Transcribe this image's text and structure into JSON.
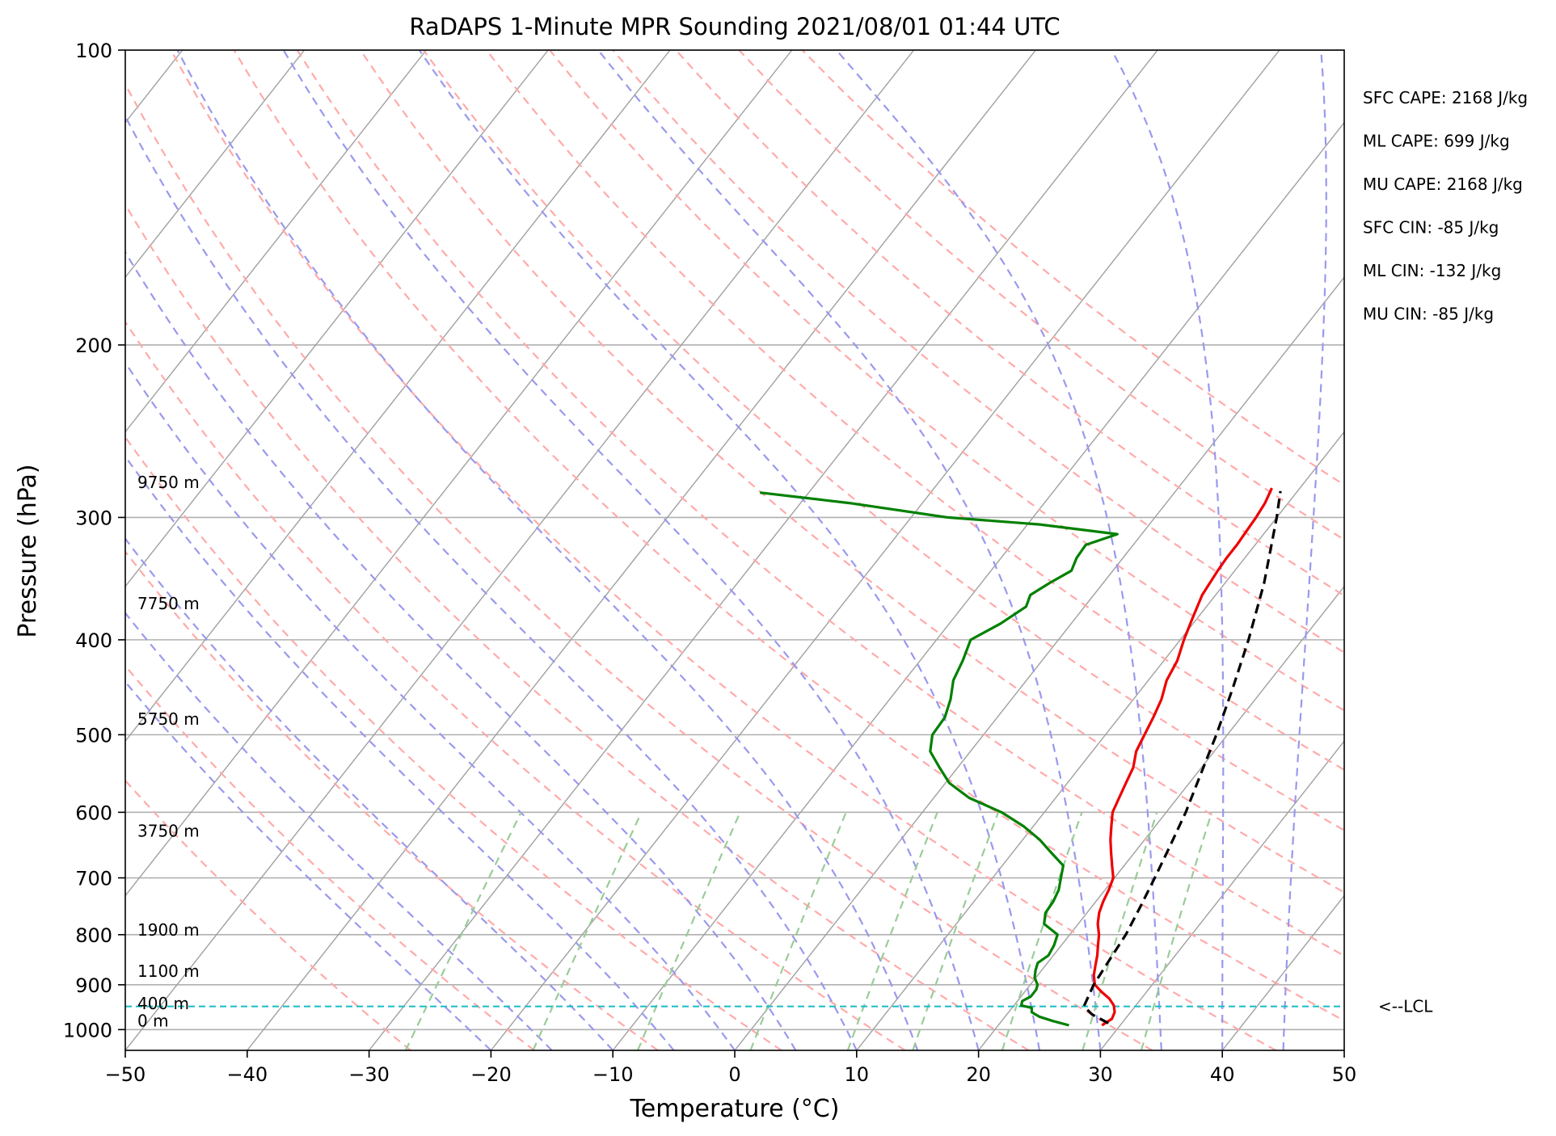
{
  "chart_data": {
    "type": "line",
    "title": "RaDAPS 1-Minute MPR Sounding 2021/08/01 01:44 UTC",
    "xlabel": "Temperature (°C)",
    "ylabel": "Pressure (hPa)",
    "xlim": [
      -50,
      50
    ],
    "ylim": [
      1050,
      100
    ],
    "y_scale": "log",
    "skew": "skew-T log-P",
    "grid": true,
    "x_ticks": [
      "−50",
      "−40",
      "−30",
      "−20",
      "−10",
      "0",
      "10",
      "20",
      "30",
      "40",
      "50"
    ],
    "y_ticks": [
      "100",
      "200",
      "300",
      "400",
      "500",
      "600",
      "700",
      "800",
      "900",
      "1000"
    ],
    "series": [
      {
        "role": "temperature",
        "color": "#ee0000",
        "points": [
          [
            990,
            28.5
          ],
          [
            975,
            28.9
          ],
          [
            960,
            28.7
          ],
          [
            945,
            28.2
          ],
          [
            930,
            27.4
          ],
          [
            915,
            26.3
          ],
          [
            900,
            25.3
          ],
          [
            880,
            24.6
          ],
          [
            860,
            24.1
          ],
          [
            840,
            23.6
          ],
          [
            820,
            23.0
          ],
          [
            800,
            22.4
          ],
          [
            780,
            21.6
          ],
          [
            760,
            21.0
          ],
          [
            740,
            20.6
          ],
          [
            720,
            20.3
          ],
          [
            700,
            19.9
          ],
          [
            680,
            19.0
          ],
          [
            660,
            18.1
          ],
          [
            640,
            17.2
          ],
          [
            620,
            16.4
          ],
          [
            600,
            15.6
          ],
          [
            580,
            15.2
          ],
          [
            560,
            14.8
          ],
          [
            540,
            14.4
          ],
          [
            520,
            13.6
          ],
          [
            500,
            13.2
          ],
          [
            480,
            12.8
          ],
          [
            460,
            12.3
          ],
          [
            440,
            11.5
          ],
          [
            420,
            11.1
          ],
          [
            400,
            10.3
          ],
          [
            380,
            9.6
          ],
          [
            360,
            8.9
          ],
          [
            340,
            8.6
          ],
          [
            330,
            8.5
          ],
          [
            320,
            8.5
          ],
          [
            310,
            8.4
          ],
          [
            300,
            8.3
          ],
          [
            290,
            8.1
          ],
          [
            280,
            7.7
          ]
        ]
      },
      {
        "role": "dewpoint",
        "color": "#008000",
        "points": [
          [
            990,
            25.8
          ],
          [
            980,
            24.2
          ],
          [
            970,
            22.8
          ],
          [
            960,
            21.9
          ],
          [
            950,
            21.6
          ],
          [
            945,
            20.6
          ],
          [
            935,
            20.4
          ],
          [
            925,
            20.8
          ],
          [
            910,
            20.8
          ],
          [
            900,
            20.6
          ],
          [
            885,
            19.9
          ],
          [
            870,
            19.5
          ],
          [
            855,
            19.2
          ],
          [
            840,
            19.6
          ],
          [
            820,
            19.4
          ],
          [
            800,
            19.0
          ],
          [
            780,
            17.2
          ],
          [
            760,
            16.6
          ],
          [
            740,
            16.5
          ],
          [
            720,
            16.2
          ],
          [
            700,
            15.6
          ],
          [
            680,
            15.0
          ],
          [
            660,
            13.2
          ],
          [
            640,
            11.4
          ],
          [
            620,
            9.2
          ],
          [
            600,
            6.5
          ],
          [
            580,
            2.9
          ],
          [
            560,
            0.3
          ],
          [
            540,
            -1.5
          ],
          [
            520,
            -3.3
          ],
          [
            500,
            -4.2
          ],
          [
            480,
            -4.3
          ],
          [
            460,
            -5.0
          ],
          [
            440,
            -6.0
          ],
          [
            420,
            -6.5
          ],
          [
            400,
            -7.2
          ],
          [
            385,
            -5.8
          ],
          [
            370,
            -4.8
          ],
          [
            360,
            -5.2
          ],
          [
            350,
            -4.4
          ],
          [
            340,
            -3.4
          ],
          [
            330,
            -3.8
          ],
          [
            320,
            -3.9
          ],
          [
            312,
            -2.0
          ],
          [
            305,
            -9.0
          ],
          [
            300,
            -17.0
          ],
          [
            290,
            -26.0
          ],
          [
            283,
            -34.0
          ]
        ]
      },
      {
        "role": "parcel-profile",
        "color": "#000000",
        "points": [
          [
            985,
            28.9
          ],
          [
            965,
            27.0
          ],
          [
            947,
            25.8
          ],
          [
            900,
            25.2
          ],
          [
            850,
            24.9
          ],
          [
            800,
            24.6
          ],
          [
            750,
            24.0
          ],
          [
            700,
            23.3
          ],
          [
            650,
            22.5
          ],
          [
            600,
            21.6
          ],
          [
            550,
            20.4
          ],
          [
            500,
            19.1
          ],
          [
            450,
            17.5
          ],
          [
            400,
            15.6
          ],
          [
            350,
            13.2
          ],
          [
            300,
            10.0
          ],
          [
            282,
            8.6
          ]
        ]
      }
    ],
    "lcl": {
      "pressure_hpa": 947,
      "label": "<--LCL"
    },
    "height_labels": [
      {
        "text": "9750 m",
        "pressure": 282
      },
      {
        "text": "7750 m",
        "pressure": 375
      },
      {
        "text": "5750 m",
        "pressure": 492
      },
      {
        "text": "3750 m",
        "pressure": 640
      },
      {
        "text": "1900 m",
        "pressure": 808
      },
      {
        "text": "1100 m",
        "pressure": 890
      },
      {
        "text": "400 m",
        "pressure": 960
      },
      {
        "text": "0 m",
        "pressure": 1000
      }
    ],
    "annotations": [
      "SFC CAPE: 2168 J/kg",
      "ML CAPE: 699 J/kg",
      "MU CAPE: 2168 J/kg",
      "SFC CIN: -85 J/kg",
      "ML CIN: -132 J/kg",
      "MU CIN: -85 J/kg"
    ],
    "colors": {
      "isobar": "#b0b0b0",
      "isotherm": "#a0a0a0",
      "dry_adiabat": "#ffaaaa",
      "moist_adiabat": "#9999ee",
      "mixing_ratio": "#99cc99",
      "lcl_line": "#17bcc4"
    }
  }
}
